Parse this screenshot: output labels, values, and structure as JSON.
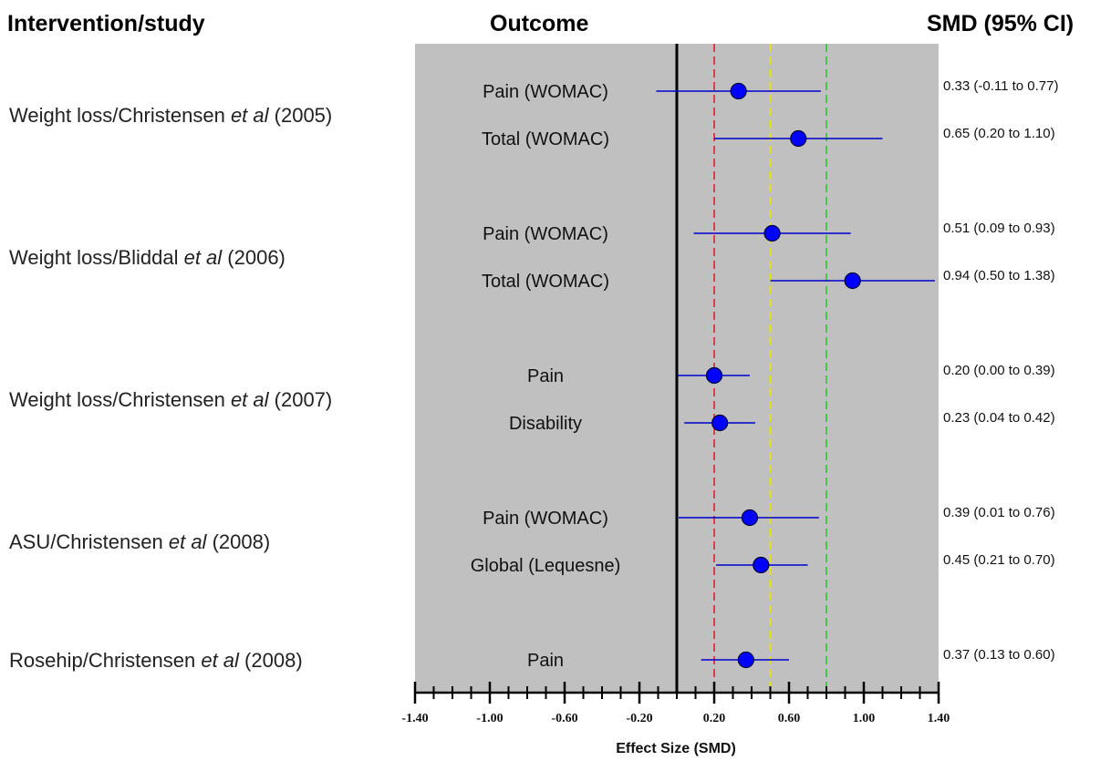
{
  "chart_data": {
    "type": "scatter",
    "subtype": "forest-plot",
    "headers": {
      "study": "Intervention/study",
      "outcome": "Outcome",
      "estimate": "SMD (95% CI)"
    },
    "xlabel": "Effect Size (SMD)",
    "xlim": [
      -1.4,
      1.4
    ],
    "x_ticks": [
      "-1.40",
      "-1.00",
      "-0.60",
      "-0.20",
      "0.20",
      "0.60",
      "1.00",
      "1.40"
    ],
    "minor_tick_step": 0.1,
    "reference_lines": [
      {
        "x": 0,
        "color": "#000000",
        "style": "solid"
      },
      {
        "x": 0.2,
        "color": "#e02020",
        "style": "dashed"
      },
      {
        "x": 0.5,
        "color": "#e8e020",
        "style": "dashed"
      },
      {
        "x": 0.8,
        "color": "#20d020",
        "style": "dashed"
      }
    ],
    "colors": {
      "plot_background": "#c0c0c0",
      "marker": "#0000ff",
      "ci_line": "#0000cc"
    },
    "studies": [
      {
        "label_prefix": "Weight loss/Christensen ",
        "label_italic": "et al",
        "label_suffix": " (2005)",
        "outcomes": [
          {
            "outcome": "Pain (WOMAC)",
            "smd": 0.33,
            "lower": -0.11,
            "upper": 0.77,
            "ci_text": "0.33 (-0.11 to 0.77)"
          },
          {
            "outcome": "Total (WOMAC)",
            "smd": 0.65,
            "lower": 0.2,
            "upper": 1.1,
            "ci_text": "0.65 (0.20 to 1.10)"
          }
        ]
      },
      {
        "label_prefix": "Weight loss/Bliddal ",
        "label_italic": "et al",
        "label_suffix": " (2006)",
        "outcomes": [
          {
            "outcome": "Pain (WOMAC)",
            "smd": 0.51,
            "lower": 0.09,
            "upper": 0.93,
            "ci_text": "0.51 (0.09 to 0.93)"
          },
          {
            "outcome": "Total (WOMAC)",
            "smd": 0.94,
            "lower": 0.5,
            "upper": 1.38,
            "ci_text": "0.94 (0.50 to 1.38)"
          }
        ]
      },
      {
        "label_prefix": "Weight loss/Christensen ",
        "label_italic": "et al",
        "label_suffix": " (2007)",
        "outcomes": [
          {
            "outcome": "Pain",
            "smd": 0.2,
            "lower": 0.0,
            "upper": 0.39,
            "ci_text": "0.20 (0.00 to 0.39)"
          },
          {
            "outcome": "Disability",
            "smd": 0.23,
            "lower": 0.04,
            "upper": 0.42,
            "ci_text": "0.23 (0.04 to 0.42)"
          }
        ]
      },
      {
        "label_prefix": "ASU/Christensen ",
        "label_italic": "et al",
        "label_suffix": " (2008)",
        "outcomes": [
          {
            "outcome": "Pain (WOMAC)",
            "smd": 0.39,
            "lower": 0.01,
            "upper": 0.76,
            "ci_text": "0.39 (0.01 to 0.76)"
          },
          {
            "outcome": "Global (Lequesne)",
            "smd": 0.45,
            "lower": 0.21,
            "upper": 0.7,
            "ci_text": "0.45 (0.21 to 0.70)"
          }
        ]
      },
      {
        "label_prefix": "Rosehip/Christensen ",
        "label_italic": "et al",
        "label_suffix": " (2008)",
        "outcomes": [
          {
            "outcome": "Pain",
            "smd": 0.37,
            "lower": 0.13,
            "upper": 0.6,
            "ci_text": "0.37 (0.13 to 0.60)"
          }
        ]
      }
    ]
  }
}
